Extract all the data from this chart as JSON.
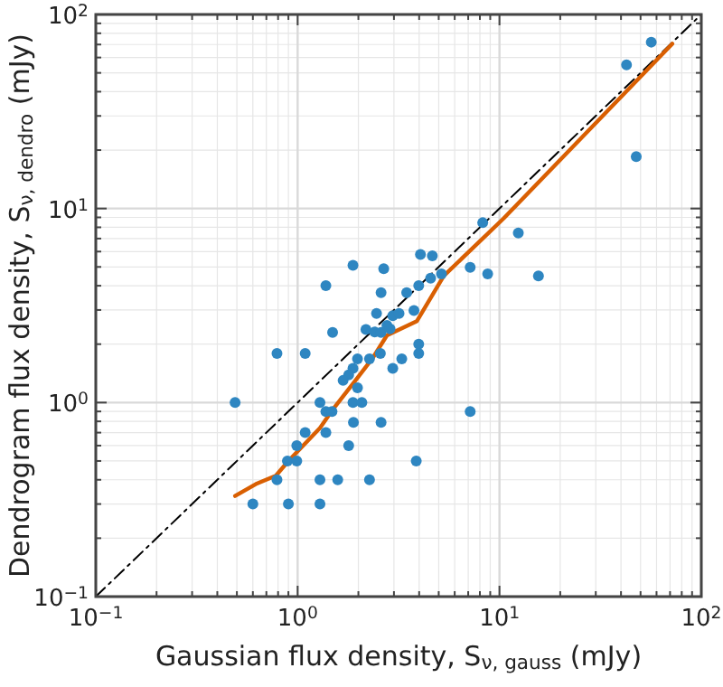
{
  "chart_data": {
    "type": "scatter",
    "xlabel": "Gaussian flux density, S$_{ν, gauss}$ (mJy)",
    "ylabel": "Dendrogram flux density, S$_{ν, dendro}$ (mJy)",
    "log": "xy",
    "grid": true,
    "xlim": [
      0.1,
      100
    ],
    "ylim": [
      0.1,
      100
    ],
    "xticks": [
      {
        "value": 0.1,
        "label": "10$^{−1}$"
      },
      {
        "value": 1,
        "label": "10$^{0}$"
      },
      {
        "value": 10,
        "label": "10$^{1}$"
      },
      {
        "value": 100,
        "label": "10$^{2}$"
      }
    ],
    "yticks": [
      {
        "value": 0.1,
        "label": "10$^{−1}$"
      },
      {
        "value": 1,
        "label": "10$^{0}$"
      },
      {
        "value": 10,
        "label": "10$^{1}$"
      },
      {
        "value": 100,
        "label": "10$^{2}$"
      }
    ],
    "series": [
      {
        "type": "line",
        "color": "#000000",
        "line_style": "dashed",
        "x": [
          0.1,
          100
        ],
        "values": [
          0.1,
          100
        ]
      },
      {
        "type": "scatter",
        "marker": "circle",
        "color": "#2e86c1",
        "x": [
          0.49,
          0.79,
          1.09,
          1.38,
          1.88,
          2.67,
          4.06,
          4.65,
          7.16,
          8.74,
          5.16,
          4.56,
          3.98,
          3.47,
          2.59,
          2.46,
          2.96,
          3.18,
          3.77,
          1.49,
          2.18,
          2.41,
          2.59,
          2.77,
          2.87,
          1.98,
          2.27,
          2.57,
          3.28,
          3.98,
          3.98,
          2.96,
          1.88,
          1.79,
          1.68,
          1.98,
          1.88,
          2.08,
          1.29,
          1.38,
          1.48,
          7.16,
          1.89,
          2.59,
          1.09,
          1.38,
          0.99,
          1.79,
          0.89,
          0.99,
          3.87,
          0.79,
          1.29,
          1.58,
          2.27,
          56.5,
          42.6,
          47.6,
          8.26,
          12.4,
          15.6,
          0.6,
          0.9,
          1.29
        ],
        "values": [
          1.0,
          1.79,
          1.79,
          4.0,
          5.1,
          4.9,
          5.8,
          5.7,
          4.97,
          4.6,
          4.6,
          4.37,
          4.0,
          3.68,
          3.68,
          2.88,
          2.8,
          2.88,
          2.98,
          2.3,
          2.38,
          2.31,
          2.3,
          2.5,
          2.4,
          1.68,
          1.68,
          1.79,
          1.68,
          2.0,
          1.79,
          1.5,
          1.5,
          1.39,
          1.3,
          1.19,
          1.0,
          1.0,
          1.0,
          0.9,
          0.9,
          0.9,
          0.79,
          0.79,
          0.7,
          0.7,
          0.6,
          0.6,
          0.5,
          0.5,
          0.5,
          0.4,
          0.4,
          0.4,
          0.4,
          72,
          55,
          18.5,
          8.45,
          7.48,
          4.49,
          0.3,
          0.3,
          0.3
        ]
      },
      {
        "type": "line",
        "color": "#d95f02",
        "line_style": "solid",
        "x": [
          0.49,
          0.62,
          0.78,
          0.9,
          1.29,
          1.48,
          1.9,
          2.34,
          2.77,
          3.9,
          5.3,
          10.5,
          71.8
        ],
        "values": [
          0.33,
          0.38,
          0.42,
          0.5,
          0.74,
          0.91,
          1.27,
          1.68,
          2.22,
          2.63,
          4.5,
          8.9,
          70.6
        ]
      }
    ]
  }
}
